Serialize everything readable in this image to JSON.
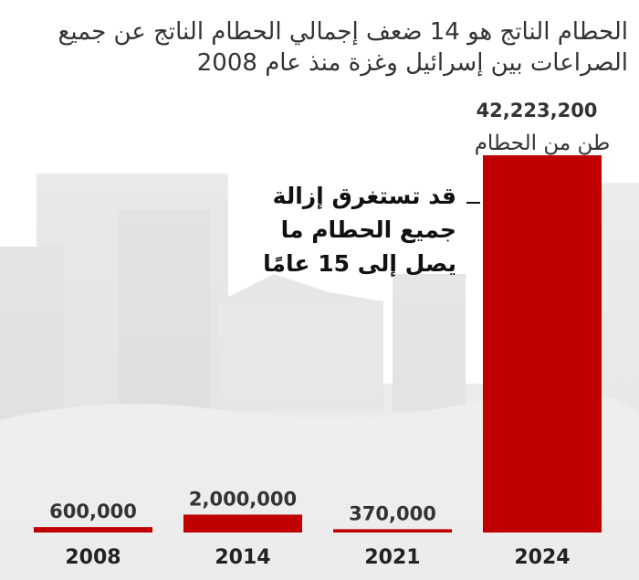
{
  "title": {
    "line1": "الحطام الناتج هو 14 ضعف إجمالي الحطام الناتج عن جميع",
    "line2": "الصراعات بين إسرائيل وغزة منذ عام 2008"
  },
  "annotation": {
    "line1": "قد تستغرق إزالة",
    "line2": "جميع الحطام ما",
    "line3": "يصل إلى 15 عامًا"
  },
  "colors": {
    "bar": "#c00000",
    "background_scene": "#e6e6e6"
  },
  "chart_data": {
    "type": "bar",
    "categories": [
      "2008",
      "2014",
      "2021",
      "2024"
    ],
    "values": [
      600000,
      2000000,
      370000,
      42223200
    ],
    "value_labels": [
      "600,000",
      "2,000,000",
      "370,000",
      "42,223,200"
    ],
    "unit_label": "طن من الحطام",
    "title": "الحطام الناتج هو 14 ضعف إجمالي الحطام الناتج عن جميع الصراعات بين إسرائيل وغزة منذ عام 2008",
    "xlabel": "",
    "ylabel": "",
    "ylim": [
      0,
      42223200
    ],
    "grid": false,
    "legend": "none"
  }
}
